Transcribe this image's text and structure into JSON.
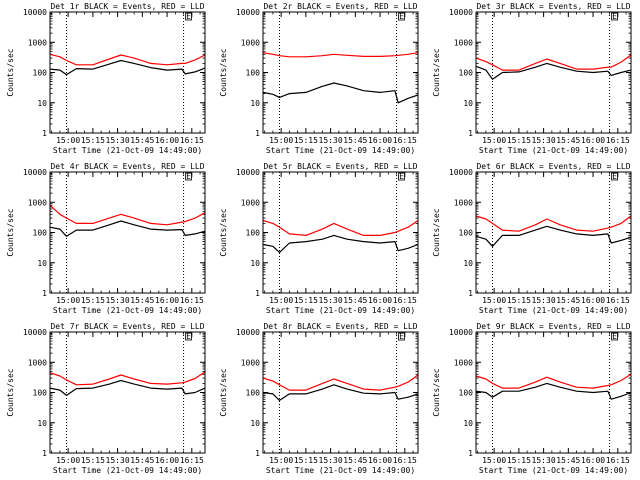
{
  "chart_data": [
    {
      "type": "line",
      "title": "Det 1r BLACK = Events, RED = LLD",
      "ylabel": "Counts/sec",
      "xlabel": "Start Time (21-Oct-09 14:49:00)",
      "xticks": [
        "15:00",
        "15:15",
        "15:30",
        "15:45",
        "16:00",
        "16:15"
      ],
      "yticks": [
        "1",
        "10",
        "100",
        "1000",
        "10000"
      ],
      "ylim": [
        1,
        10000
      ],
      "xlim": [
        "14:49",
        "16:23"
      ],
      "yscale": "log",
      "marker_label": "E",
      "dotted_lines_at": [
        "14:59",
        "16:10"
      ],
      "x": [
        "14:49",
        "14:55",
        "14:59",
        "15:05",
        "15:15",
        "15:25",
        "15:32",
        "15:40",
        "15:50",
        "16:00",
        "16:09",
        "16:11",
        "16:17",
        "16:23"
      ],
      "series": [
        {
          "name": "BLACK",
          "color": "#000000",
          "values": [
            130,
            120,
            85,
            135,
            130,
            190,
            250,
            200,
            145,
            120,
            130,
            90,
            105,
            140
          ]
        },
        {
          "name": "RED",
          "color": "#ff0000",
          "values": [
            400,
            330,
            250,
            180,
            180,
            280,
            380,
            300,
            200,
            180,
            200,
            200,
            260,
            380
          ]
        }
      ]
    },
    {
      "type": "line",
      "title": "Det 2r BLACK = Events, RED = LLD",
      "ylabel": "Counts/sec",
      "xlabel": "Start Time (21-Oct-09 14:49:00)",
      "xticks": [
        "15:00",
        "15:15",
        "15:30",
        "15:45",
        "16:00",
        "16:15"
      ],
      "yticks": [
        "1",
        "10",
        "100",
        "1000",
        "10000"
      ],
      "ylim": [
        1,
        10000
      ],
      "xlim": [
        "14:49",
        "16:23"
      ],
      "yscale": "log",
      "marker_label": "E",
      "dotted_lines_at": [
        "14:59",
        "16:10"
      ],
      "x": [
        "14:49",
        "14:55",
        "14:59",
        "15:05",
        "15:15",
        "15:25",
        "15:32",
        "15:40",
        "15:50",
        "16:00",
        "16:09",
        "16:11",
        "16:17",
        "16:23"
      ],
      "series": [
        {
          "name": "BLACK",
          "color": "#000000",
          "values": [
            22,
            19,
            15,
            20,
            22,
            35,
            45,
            36,
            25,
            22,
            25,
            10,
            14,
            18
          ]
        },
        {
          "name": "RED",
          "color": "#ff0000",
          "values": [
            450,
            400,
            360,
            330,
            330,
            360,
            400,
            370,
            340,
            340,
            360,
            370,
            400,
            450
          ]
        }
      ]
    },
    {
      "type": "line",
      "title": "Det 3r BLACK = Events, RED = LLD",
      "ylabel": "Counts/sec",
      "xlabel": "Start Time (21-Oct-09 14:49:00)",
      "xticks": [
        "15:00",
        "15:15",
        "15:30",
        "15:45",
        "16:00",
        "16:15"
      ],
      "yticks": [
        "1",
        "10",
        "100",
        "1000",
        "10000"
      ],
      "ylim": [
        1,
        10000
      ],
      "xlim": [
        "14:49",
        "16:23"
      ],
      "yscale": "log",
      "marker_label": "E",
      "dotted_lines_at": [
        "14:59",
        "16:10"
      ],
      "x": [
        "14:49",
        "14:55",
        "14:59",
        "15:05",
        "15:15",
        "15:25",
        "15:32",
        "15:40",
        "15:50",
        "16:00",
        "16:09",
        "16:11",
        "16:17",
        "16:23"
      ],
      "series": [
        {
          "name": "BLACK",
          "color": "#000000",
          "values": [
            160,
            120,
            60,
            100,
            105,
            150,
            200,
            150,
            110,
            100,
            110,
            80,
            100,
            120
          ]
        },
        {
          "name": "RED",
          "color": "#ff0000",
          "values": [
            300,
            230,
            180,
            120,
            120,
            200,
            280,
            200,
            130,
            130,
            150,
            150,
            220,
            380
          ]
        }
      ]
    },
    {
      "type": "line",
      "title": "Det 4r BLACK = Events, RED = LLD",
      "ylabel": "Counts/sec",
      "xlabel": "Start Time (21-Oct-09 14:49:00)",
      "xticks": [
        "15:00",
        "15:15",
        "15:30",
        "15:45",
        "16:00",
        "16:15"
      ],
      "yticks": [
        "1",
        "10",
        "100",
        "1000",
        "10000"
      ],
      "ylim": [
        1,
        10000
      ],
      "xlim": [
        "14:49",
        "16:23"
      ],
      "yscale": "log",
      "marker_label": "E",
      "dotted_lines_at": [
        "14:59",
        "16:10"
      ],
      "x": [
        "14:49",
        "14:55",
        "14:59",
        "15:05",
        "15:15",
        "15:25",
        "15:32",
        "15:40",
        "15:50",
        "16:00",
        "16:09",
        "16:11",
        "16:17",
        "16:23"
      ],
      "series": [
        {
          "name": "BLACK",
          "color": "#000000",
          "values": [
            150,
            130,
            75,
            120,
            120,
            180,
            240,
            180,
            130,
            120,
            125,
            80,
            90,
            110
          ]
        },
        {
          "name": "RED",
          "color": "#ff0000",
          "values": [
            800,
            400,
            300,
            200,
            200,
            300,
            400,
            300,
            200,
            180,
            220,
            230,
            300,
            450
          ]
        }
      ]
    },
    {
      "type": "line",
      "title": "Det 5r BLACK = Events, RED = LLD",
      "ylabel": "Counts/sec",
      "xlabel": "Start Time (21-Oct-09 14:49:00)",
      "xticks": [
        "15:00",
        "15:15",
        "15:30",
        "15:45",
        "16:00",
        "16:15"
      ],
      "yticks": [
        "1",
        "10",
        "100",
        "1000",
        "10000"
      ],
      "ylim": [
        1,
        10000
      ],
      "xlim": [
        "14:49",
        "16:23"
      ],
      "yscale": "log",
      "marker_label": "E",
      "dotted_lines_at": [
        "14:59",
        "16:10"
      ],
      "x": [
        "14:49",
        "14:55",
        "14:59",
        "15:05",
        "15:15",
        "15:25",
        "15:32",
        "15:40",
        "15:50",
        "16:00",
        "16:09",
        "16:11",
        "16:17",
        "16:23"
      ],
      "series": [
        {
          "name": "BLACK",
          "color": "#000000",
          "values": [
            40,
            35,
            22,
            45,
            50,
            60,
            80,
            60,
            50,
            45,
            50,
            25,
            30,
            40
          ]
        },
        {
          "name": "RED",
          "color": "#ff0000",
          "values": [
            250,
            200,
            150,
            90,
            80,
            130,
            200,
            130,
            80,
            80,
            100,
            110,
            150,
            250
          ]
        }
      ]
    },
    {
      "type": "line",
      "title": "Det 6r BLACK = Events, RED = LLD",
      "ylabel": "Counts/sec",
      "xlabel": "Start Time (21-Oct-09 14:49:00)",
      "xticks": [
        "15:00",
        "15:15",
        "15:30",
        "15:45",
        "16:00",
        "16:15"
      ],
      "yticks": [
        "1",
        "10",
        "100",
        "1000",
        "10000"
      ],
      "ylim": [
        1,
        10000
      ],
      "xlim": [
        "14:49",
        "16:23"
      ],
      "yscale": "log",
      "marker_label": "E",
      "dotted_lines_at": [
        "14:59",
        "16:10"
      ],
      "x": [
        "14:49",
        "14:55",
        "14:59",
        "15:05",
        "15:15",
        "15:25",
        "15:32",
        "15:40",
        "15:50",
        "16:00",
        "16:09",
        "16:11",
        "16:17",
        "16:23"
      ],
      "series": [
        {
          "name": "BLACK",
          "color": "#000000",
          "values": [
            75,
            60,
            35,
            80,
            80,
            120,
            160,
            120,
            90,
            80,
            90,
            45,
            55,
            70
          ]
        },
        {
          "name": "RED",
          "color": "#ff0000",
          "values": [
            350,
            280,
            200,
            120,
            110,
            180,
            280,
            180,
            120,
            110,
            140,
            150,
            200,
            350
          ]
        }
      ]
    },
    {
      "type": "line",
      "title": "Det 7r BLACK = Events, RED = LLD",
      "ylabel": "Counts/sec",
      "xlabel": "Start Time (21-Oct-09 14:49:00)",
      "xticks": [
        "15:00",
        "15:15",
        "15:30",
        "15:45",
        "16:00",
        "16:15"
      ],
      "yticks": [
        "1",
        "10",
        "100",
        "1000",
        "10000"
      ],
      "ylim": [
        1,
        10000
      ],
      "xlim": [
        "14:49",
        "16:23"
      ],
      "yscale": "log",
      "marker_label": "E",
      "dotted_lines_at": [
        "14:59",
        "16:10"
      ],
      "x": [
        "14:49",
        "14:55",
        "14:59",
        "15:05",
        "15:15",
        "15:25",
        "15:32",
        "15:40",
        "15:50",
        "16:00",
        "16:09",
        "16:11",
        "16:17",
        "16:23"
      ],
      "series": [
        {
          "name": "BLACK",
          "color": "#000000",
          "values": [
            140,
            120,
            80,
            135,
            140,
            190,
            250,
            190,
            140,
            130,
            140,
            90,
            100,
            140
          ]
        },
        {
          "name": "RED",
          "color": "#ff0000",
          "values": [
            450,
            350,
            260,
            180,
            190,
            280,
            380,
            280,
            200,
            190,
            210,
            220,
            290,
            480
          ]
        }
      ]
    },
    {
      "type": "line",
      "title": "Det 8r BLACK = Events, RED = LLD",
      "ylabel": "Counts/sec",
      "xlabel": "Start Time (21-Oct-09 14:49:00)",
      "xticks": [
        "15:00",
        "15:15",
        "15:30",
        "15:45",
        "16:00",
        "16:15"
      ],
      "yticks": [
        "1",
        "10",
        "100",
        "1000",
        "10000"
      ],
      "ylim": [
        1,
        10000
      ],
      "xlim": [
        "14:49",
        "16:23"
      ],
      "yscale": "log",
      "marker_label": "E",
      "dotted_lines_at": [
        "14:59",
        "16:10"
      ],
      "x": [
        "14:49",
        "14:55",
        "14:59",
        "15:05",
        "15:15",
        "15:25",
        "15:32",
        "15:40",
        "15:50",
        "16:00",
        "16:09",
        "16:11",
        "16:17",
        "16:23"
      ],
      "series": [
        {
          "name": "BLACK",
          "color": "#000000",
          "values": [
            100,
            90,
            55,
            90,
            90,
            130,
            180,
            130,
            95,
            90,
            100,
            60,
            70,
            90
          ]
        },
        {
          "name": "RED",
          "color": "#ff0000",
          "values": [
            300,
            240,
            180,
            120,
            120,
            200,
            280,
            200,
            130,
            120,
            150,
            160,
            220,
            380
          ]
        }
      ]
    },
    {
      "type": "line",
      "title": "Det 9r BLACK = Events, RED = LLD",
      "ylabel": "Counts/sec",
      "xlabel": "Start Time (21-Oct-09 14:49:00)",
      "xticks": [
        "15:00",
        "15:15",
        "15:30",
        "15:45",
        "16:00",
        "16:15"
      ],
      "yticks": [
        "1",
        "10",
        "100",
        "1000",
        "10000"
      ],
      "ylim": [
        1,
        10000
      ],
      "xlim": [
        "14:49",
        "16:23"
      ],
      "yscale": "log",
      "marker_label": "E",
      "dotted_lines_at": [
        "14:59",
        "16:10"
      ],
      "x": [
        "14:49",
        "14:55",
        "14:59",
        "15:05",
        "15:15",
        "15:25",
        "15:32",
        "15:40",
        "15:50",
        "16:00",
        "16:09",
        "16:11",
        "16:17",
        "16:23"
      ],
      "series": [
        {
          "name": "BLACK",
          "color": "#000000",
          "values": [
            110,
            100,
            70,
            110,
            110,
            150,
            200,
            150,
            110,
            100,
            110,
            60,
            75,
            100
          ]
        },
        {
          "name": "RED",
          "color": "#ff0000",
          "values": [
            350,
            280,
            200,
            140,
            140,
            220,
            320,
            220,
            150,
            140,
            170,
            180,
            250,
            400
          ]
        }
      ]
    }
  ]
}
